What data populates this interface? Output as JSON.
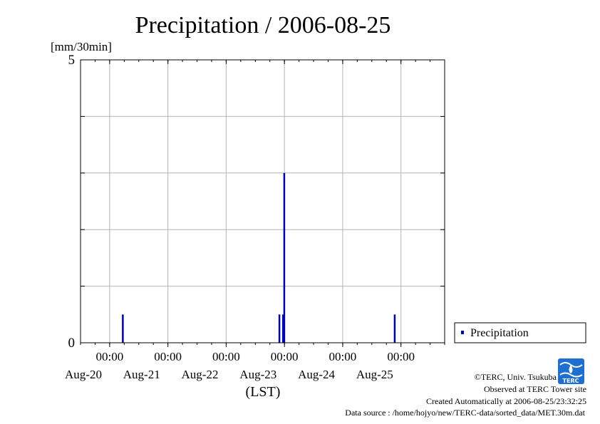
{
  "chart_data": {
    "type": "bar",
    "title": "Precipitation / 2006-08-25",
    "ylabel": "[mm/30min]",
    "xlabel": "(LST)",
    "ylim": [
      0,
      5
    ],
    "y_ticks": [
      "0",
      "5"
    ],
    "xlim": [
      "2006-08-19 12:00",
      "2006-08-25 18:00"
    ],
    "x_ticks": [
      {
        "date": "2006-08-20 00:00",
        "time": "00:00",
        "day": "Aug-20"
      },
      {
        "date": "2006-08-21 00:00",
        "time": "00:00",
        "day": "Aug-21"
      },
      {
        "date": "2006-08-22 00:00",
        "time": "00:00",
        "day": "Aug-22"
      },
      {
        "date": "2006-08-23 00:00",
        "time": "00:00",
        "day": "Aug-23"
      },
      {
        "date": "2006-08-24 00:00",
        "time": "00:00",
        "day": "Aug-24"
      },
      {
        "date": "2006-08-25 00:00",
        "time": "00:00",
        "day": "Aug-25"
      }
    ],
    "grid": true,
    "legend_position": "right",
    "series": [
      {
        "name": "Precipitation",
        "color": "#0000aa",
        "points": [
          {
            "x": "2006-08-20 05:30",
            "y": 0.5
          },
          {
            "x": "2006-08-22 22:00",
            "y": 0.5
          },
          {
            "x": "2006-08-22 23:30",
            "y": 0.5
          },
          {
            "x": "2006-08-23 00:00",
            "y": 3.0
          },
          {
            "x": "2006-08-24 21:30",
            "y": 0.5
          }
        ]
      }
    ]
  },
  "footer": {
    "copyright": "©TERC, Univ. Tsukuba",
    "observed": "Observed at TERC Tower site",
    "created": "Created Automatically at 2006-08-25/23:32:25",
    "source": "Data source : /home/hojyo/new/TERC-data/sorted_data/MET.30m.dat",
    "logo_text": "TERC"
  }
}
